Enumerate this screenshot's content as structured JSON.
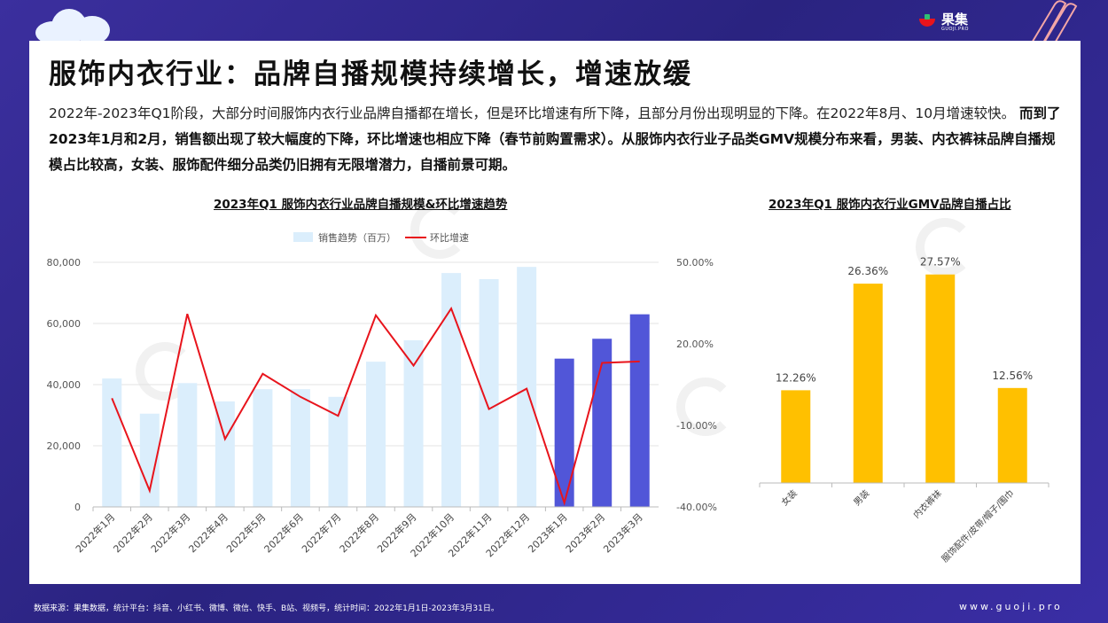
{
  "brand": {
    "name": "果集",
    "sub": "GUOJI.PRO"
  },
  "title": "服饰内衣行业：品牌自播规模持续增长，增速放缓",
  "paragraph": {
    "normal": "2022年-2023年Q1阶段，大部分时间服饰内衣行业品牌自播都在增长，但是环比增速有所下降，且部分月份出现明显的下降。在2022年8月、10月增速较快。",
    "bold": "而到了2023年1月和2月，销售额出现了较大幅度的下降，环比增速也相应下降（春节前购置需求）。从服饰内衣行业子品类GMV规模分布来看，男装、内衣裤袜品牌自播规模占比较高，女装、服饰配件细分品类仍旧拥有无限增潜力，自播前景可期。"
  },
  "footer": "数据来源：果集数据，统计平台：抖音、小红书、微博、微信、快手、B站、视频号，统计时间：2022年1月1日-2023年3月31日。",
  "website": "www.guoji.pro",
  "colors": {
    "bar_light": "#dbeefc",
    "bar_dark": "#5156d8",
    "line": "#e8141c",
    "bar_gold": "#ffc000"
  },
  "chart_data": [
    {
      "type": "bar",
      "title": "2023年Q1 服饰内衣行业品牌自播规模&环比增速趋势",
      "categories": [
        "2022年1月",
        "2022年2月",
        "2022年3月",
        "2022年4月",
        "2022年5月",
        "2022年6月",
        "2022年7月",
        "2022年8月",
        "2022年9月",
        "2022年10月",
        "2022年11月",
        "2022年12月",
        "2023年1月",
        "2023年2月",
        "2023年3月"
      ],
      "series": [
        {
          "name": "销售趋势（百万）",
          "axis": "left",
          "values": [
            42000,
            30500,
            40500,
            34500,
            38500,
            38500,
            36000,
            47500,
            54500,
            76500,
            74500,
            78500,
            48500,
            55000,
            63000
          ],
          "highlight_from_index": 12
        },
        {
          "name": "环比增速",
          "axis": "right",
          "type": "line",
          "values": [
            0.0,
            -34.0,
            31.0,
            -15.0,
            9.0,
            0.5,
            -6.5,
            30.5,
            12.0,
            33.0,
            -4.0,
            3.5,
            -38.5,
            13.0,
            13.5
          ]
        }
      ],
      "ylim_left": [
        0,
        80000
      ],
      "yticks_left": [
        "0",
        "20,000",
        "40,000",
        "60,000",
        "80,000"
      ],
      "ylim_right": [
        -40,
        50
      ],
      "yticks_right": [
        "-40.00%",
        "-10.00%",
        "20.00%",
        "50.00%"
      ],
      "legend": "top",
      "grid": true
    },
    {
      "type": "bar",
      "title": "2023年Q1 服饰内衣行业GMV品牌自播占比",
      "categories": [
        "女装",
        "男装",
        "内衣裤袜",
        "服饰配件/皮带/帽子/围巾"
      ],
      "values": [
        12.26,
        26.36,
        27.57,
        12.56
      ],
      "labels": [
        "12.26%",
        "26.36%",
        "27.57%",
        "12.56%"
      ],
      "ylim": [
        0,
        30
      ],
      "grid": false
    }
  ]
}
